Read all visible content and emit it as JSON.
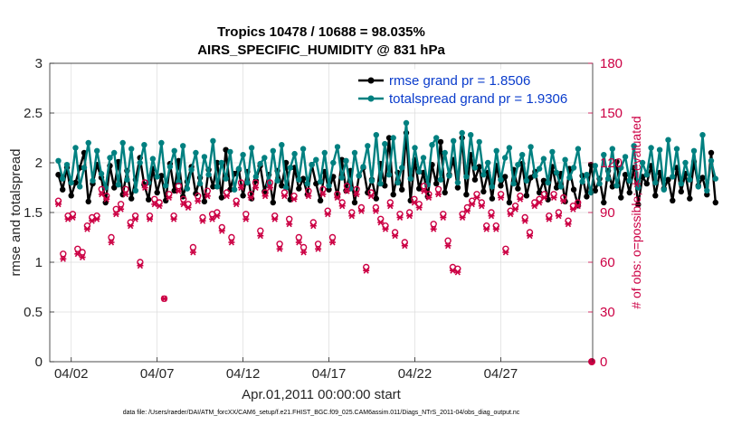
{
  "chart_data": {
    "type": "line",
    "title": "Tropics 10478 / 10688 = 98.035%",
    "subtitle": "AIRS_SPECIFIC_HUMIDITY @ 831 hPa",
    "xlabel": "Apr.01,2011 00:00:00 start",
    "ylabel": "rmse and totalspread",
    "ylabel_right": "# of obs: o=possible; ∗=evaluated",
    "footnote": "data file: /Users/raeder/DAI/ATM_forcXX/CAM6_setup/f.e21.FHIST_BGC.f09_025.CAM6assim.011/Diags_NTrS_2011-04/obs_diag_output.nc",
    "xlim": [
      0,
      31.6
    ],
    "ylim": [
      0,
      3
    ],
    "ylim_right": [
      0,
      180
    ],
    "grid": true,
    "legend_position": "top-right",
    "x_ticks": [
      {
        "value": 1.25,
        "label": "04/02"
      },
      {
        "value": 6.25,
        "label": "04/07"
      },
      {
        "value": 11.25,
        "label": "04/12"
      },
      {
        "value": 16.25,
        "label": "04/17"
      },
      {
        "value": 21.25,
        "label": "04/22"
      },
      {
        "value": 26.25,
        "label": "04/27"
      }
    ],
    "y_ticks": [
      {
        "value": 0,
        "label": "0"
      },
      {
        "value": 0.5,
        "label": "0.5"
      },
      {
        "value": 1,
        "label": "1"
      },
      {
        "value": 1.5,
        "label": "1.5"
      },
      {
        "value": 2,
        "label": "2"
      },
      {
        "value": 2.5,
        "label": "2.5"
      },
      {
        "value": 3,
        "label": "3"
      }
    ],
    "y_ticks_right": [
      {
        "value": 0,
        "label": "0"
      },
      {
        "value": 30,
        "label": "30"
      },
      {
        "value": 60,
        "label": "60"
      },
      {
        "value": 90,
        "label": "90"
      },
      {
        "value": 120,
        "label": "120"
      },
      {
        "value": 150,
        "label": "150"
      },
      {
        "value": 180,
        "label": "180"
      }
    ],
    "x_step": 0.25,
    "series": [
      {
        "name": "rmse grand pr = 1.8506",
        "color": "#000000",
        "axis": "left",
        "values": [
          1.88,
          1.73,
          1.95,
          1.67,
          1.8,
          1.95,
          2.1,
          1.61,
          1.79,
          1.98,
          1.85,
          1.6,
          1.97,
          1.75,
          2.01,
          1.68,
          1.92,
          1.64,
          1.83,
          2.05,
          1.78,
          1.63,
          1.94,
          1.7,
          1.87,
          1.62,
          1.99,
          1.72,
          2.02,
          1.66,
          1.81,
          1.96,
          1.69,
          1.85,
          1.61,
          1.93,
          1.76,
          2.0,
          1.65,
          2.13,
          1.73,
          1.89,
          1.93,
          1.67,
          1.91,
          1.64,
          1.82,
          1.97,
          1.71,
          1.88,
          1.6,
          1.92,
          1.77,
          2.0,
          1.63,
          1.95,
          1.74,
          1.84,
          1.68,
          1.98,
          1.79,
          1.62,
          1.91,
          1.73,
          1.86,
          1.66,
          2.03,
          1.72,
          1.92,
          1.6,
          1.87,
          1.95,
          1.7,
          1.83,
          1.64,
          1.99,
          1.77,
          2.25,
          1.68,
          1.9,
          1.73,
          2.3,
          1.62,
          2.03,
          1.74,
          1.9,
          1.66,
          1.98,
          1.79,
          2.21,
          1.7,
          1.88,
          2.03,
          1.75,
          2.25,
          1.68,
          2.08,
          1.83,
          1.96,
          1.71,
          1.9,
          1.64,
          1.97,
          1.77,
          1.86,
          1.6,
          1.93,
          1.74,
          1.99,
          1.67,
          1.85,
          1.91,
          1.7,
          1.82,
          1.63,
          1.96,
          1.75,
          1.89,
          1.61,
          1.94,
          1.73,
          1.57,
          1.87,
          1.66,
          1.98,
          1.72,
          1.84,
          1.6,
          1.92,
          1.76,
          2.01,
          1.65,
          1.88,
          1.7,
          1.95,
          1.58,
          1.86,
          1.79,
          1.97,
          1.67,
          1.9,
          1.74,
          1.83,
          1.62,
          1.95,
          1.71,
          1.89,
          1.64,
          2.01,
          1.77,
          1.85,
          1.68,
          2.1,
          1.6
        ]
      },
      {
        "name": "totalspread grand pr = 1.9306",
        "color": "#008080",
        "axis": "left",
        "values": [
          2.02,
          1.84,
          1.98,
          1.8,
          2.15,
          1.76,
          1.95,
          2.2,
          1.82,
          2.12,
          1.89,
          1.75,
          2.05,
          2.1,
          1.78,
          2.2,
          1.83,
          2.14,
          1.72,
          2.0,
          2.18,
          1.8,
          2.04,
          1.86,
          2.2,
          1.77,
          1.96,
          2.12,
          1.81,
          2.17,
          1.74,
          1.93,
          2.1,
          1.79,
          2.06,
          1.88,
          2.22,
          1.76,
          2.0,
          1.84,
          2.11,
          1.73,
          1.94,
          2.08,
          1.8,
          2.15,
          1.86,
          1.99,
          2.05,
          1.78,
          2.12,
          1.82,
          2.18,
          1.75,
          1.95,
          2.09,
          1.83,
          2.14,
          1.79,
          1.98,
          2.03,
          1.81,
          2.1,
          1.77,
          2.0,
          2.16,
          1.85,
          2.02,
          1.74,
          2.1,
          1.87,
          1.96,
          2.17,
          1.82,
          2.28,
          1.79,
          2.19,
          1.88,
          2.25,
          1.8,
          1.95,
          2.4,
          1.84,
          2.15,
          1.91,
          2.05,
          1.78,
          2.18,
          2.25,
          1.83,
          2.1,
          1.87,
          2.22,
          1.8,
          2.3,
          1.86,
          2.28,
          1.95,
          2.21,
          1.88,
          2.0,
          1.76,
          2.12,
          1.83,
          2.05,
          2.15,
          1.79,
          1.98,
          2.08,
          1.82,
          2.16,
          1.87,
          1.94,
          2.04,
          1.8,
          2.11,
          1.9,
          1.76,
          2.03,
          1.85,
          1.95,
          2.14,
          1.81,
          1.88,
          1.7,
          1.97,
          1.79,
          2.08,
          1.84,
          2.14,
          1.77,
          1.95,
          2.06,
          1.82,
          2.17,
          1.75,
          2.0,
          1.88,
          2.15,
          1.8,
          2.13,
          1.73,
          2.23,
          1.86,
          2.14,
          1.79,
          2.0,
          1.83,
          2.12,
          1.76,
          2.28,
          1.72,
          2.02,
          1.84
        ]
      }
    ],
    "obs_points": {
      "color": "#cc0044",
      "axis": "right",
      "possible": [
        97,
        65,
        88,
        89,
        68,
        66,
        82,
        87,
        88,
        104,
        100,
        75,
        92,
        95,
        104,
        84,
        88,
        60,
        108,
        88,
        98,
        96,
        38,
        101,
        88,
        106,
        98,
        95,
        69,
        100,
        87,
        103,
        89,
        90,
        81,
        102,
        75,
        97,
        108,
        89,
        101,
        108,
        79,
        102,
        108,
        88,
        71,
        102,
        86,
        100,
        75,
        69,
        103,
        84,
        71,
        104,
        91,
        75,
        101,
        96,
        106,
        90,
        104,
        93,
        57,
        102,
        93,
        86,
        82,
        96,
        78,
        89,
        72,
        90,
        98,
        95,
        106,
        101,
        83,
        104,
        89,
        73,
        57,
        56,
        89,
        93,
        97,
        101,
        96,
        82,
        90,
        82,
        101,
        68,
        91,
        94,
        100,
        87,
        78,
        96,
        98,
        101,
        88,
        101,
        90,
        99,
        85,
        94,
        96
      ],
      "evaluated": [
        95,
        62,
        86,
        87,
        65,
        63,
        80,
        85,
        86,
        101,
        98,
        72,
        89,
        92,
        101,
        82,
        86,
        58,
        105,
        86,
        95,
        94,
        38,
        99,
        86,
        103,
        95,
        93,
        66,
        97,
        85,
        100,
        86,
        88,
        79,
        100,
        72,
        95,
        105,
        86,
        99,
        105,
        76,
        100,
        105,
        86,
        68,
        100,
        83,
        98,
        72,
        66,
        100,
        82,
        68,
        101,
        89,
        72,
        99,
        94,
        103,
        88,
        101,
        91,
        55,
        100,
        91,
        84,
        80,
        94,
        76,
        87,
        70,
        88,
        96,
        93,
        103,
        99,
        80,
        101,
        87,
        70,
        55,
        54,
        87,
        91,
        95,
        99,
        94,
        80,
        88,
        80,
        99,
        66,
        89,
        92,
        98,
        85,
        76,
        94,
        96,
        99,
        86,
        99,
        88,
        97,
        83,
        92,
        94
      ],
      "spacing_days": 0.28,
      "last_point": {
        "x": 31.55,
        "value": 0
      }
    }
  }
}
